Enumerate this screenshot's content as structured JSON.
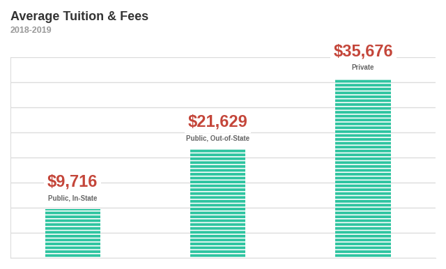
{
  "chart_data": {
    "type": "bar",
    "title": "Average Tuition & Fees",
    "subtitle": "2018-2019",
    "categories": [
      "Public, In-State",
      "Public, Out-of-State",
      "Private"
    ],
    "values": [
      9716,
      21629,
      35676
    ],
    "value_labels": [
      "$9,716",
      "$21,629",
      "$35,676"
    ],
    "data_labels": true,
    "color": "#2ec4a0",
    "ylim": [
      0,
      40000
    ],
    "yticks": [
      0,
      5000,
      10000,
      15000,
      20000,
      25000,
      30000,
      35000,
      40000
    ],
    "grid": true,
    "tick_labels": false
  }
}
